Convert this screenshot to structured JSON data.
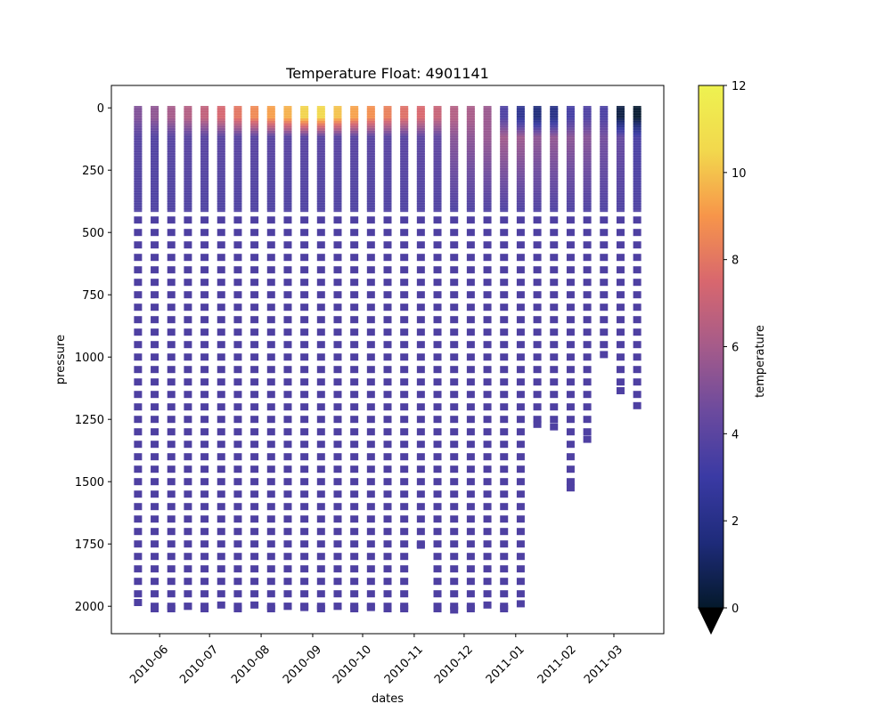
{
  "chart_data": {
    "type": "scatter",
    "title": "Temperature Float: 4901141",
    "xlabel": "dates",
    "ylabel": "pressure",
    "x_ticks": [
      "2010-06",
      "2010-07",
      "2010-08",
      "2010-09",
      "2010-10",
      "2010-11",
      "2010-12",
      "2011-01",
      "2011-02",
      "2011-03"
    ],
    "xlim": [
      "2010-05-03",
      "2011-03-31"
    ],
    "y_ticks": [
      "0",
      "250",
      "500",
      "750",
      "1000",
      "1250",
      "1500",
      "1750",
      "2000"
    ],
    "ylim": [
      2110,
      -90
    ],
    "y_inverted": true,
    "colorbar": {
      "label": "temperature",
      "range": [
        0,
        12
      ],
      "ticks": [
        "0",
        "2",
        "4",
        "6",
        "8",
        "10",
        "12"
      ],
      "colormap": [
        "#04192b",
        "#1e2b7a",
        "#3a3aa4",
        "#6b4a9e",
        "#a55b8a",
        "#d8676e",
        "#f7954a",
        "#f2d84d",
        "#eef250"
      ],
      "extend": "min"
    },
    "upper_depth": 410,
    "profiles": [
      {
        "date": "2010-05-19",
        "max": 1985,
        "surface_temp": 5.0,
        "upper_temp": 3.8,
        "deep_temp": 3.6
      },
      {
        "date": "2010-05-29",
        "max": 2010,
        "surface_temp": 5.4,
        "upper_temp": 3.7,
        "deep_temp": 3.6
      },
      {
        "date": "2010-06-08",
        "max": 2010,
        "surface_temp": 6.0,
        "upper_temp": 3.8,
        "deep_temp": 3.6
      },
      {
        "date": "2010-06-18",
        "max": 2000,
        "surface_temp": 6.4,
        "upper_temp": 3.9,
        "deep_temp": 3.6
      },
      {
        "date": "2010-06-28",
        "max": 2010,
        "surface_temp": 6.8,
        "upper_temp": 3.9,
        "deep_temp": 3.6
      },
      {
        "date": "2010-07-08",
        "max": 1995,
        "surface_temp": 7.4,
        "upper_temp": 3.9,
        "deep_temp": 3.6
      },
      {
        "date": "2010-07-18",
        "max": 2010,
        "surface_temp": 8.0,
        "upper_temp": 3.9,
        "deep_temp": 3.6
      },
      {
        "date": "2010-07-28",
        "max": 1995,
        "surface_temp": 8.6,
        "upper_temp": 3.9,
        "deep_temp": 3.6
      },
      {
        "date": "2010-08-07",
        "max": 2010,
        "surface_temp": 9.2,
        "upper_temp": 3.9,
        "deep_temp": 3.6
      },
      {
        "date": "2010-08-17",
        "max": 2000,
        "surface_temp": 9.6,
        "upper_temp": 3.9,
        "deep_temp": 3.6
      },
      {
        "date": "2010-08-27",
        "max": 2005,
        "surface_temp": 10.4,
        "upper_temp": 3.9,
        "deep_temp": 3.6
      },
      {
        "date": "2010-09-06",
        "max": 2010,
        "surface_temp": 10.5,
        "upper_temp": 3.9,
        "deep_temp": 3.6
      },
      {
        "date": "2010-09-16",
        "max": 2000,
        "surface_temp": 10.0,
        "upper_temp": 3.9,
        "deep_temp": 3.6
      },
      {
        "date": "2010-09-26",
        "max": 2010,
        "surface_temp": 9.3,
        "upper_temp": 3.9,
        "deep_temp": 3.6
      },
      {
        "date": "2010-10-06",
        "max": 2005,
        "surface_temp": 8.8,
        "upper_temp": 3.9,
        "deep_temp": 3.6
      },
      {
        "date": "2010-10-16",
        "max": 2010,
        "surface_temp": 8.3,
        "upper_temp": 3.9,
        "deep_temp": 3.6
      },
      {
        "date": "2010-10-26",
        "max": 2010,
        "surface_temp": 7.8,
        "upper_temp": 3.9,
        "deep_temp": 3.6
      },
      {
        "date": "2010-11-05",
        "max": 1755,
        "surface_temp": 7.5,
        "upper_temp": 4.0,
        "deep_temp": 3.6
      },
      {
        "date": "2010-11-15",
        "max": 2010,
        "surface_temp": 7.0,
        "upper_temp": 4.1,
        "deep_temp": 3.6
      },
      {
        "date": "2010-11-25",
        "max": 2015,
        "surface_temp": 6.4,
        "upper_temp": 5.2,
        "deep_temp": 3.6
      },
      {
        "date": "2010-12-05",
        "max": 2010,
        "surface_temp": 6.1,
        "upper_temp": 5.3,
        "deep_temp": 3.6
      },
      {
        "date": "2010-12-15",
        "max": 1995,
        "surface_temp": 5.7,
        "upper_temp": 5.6,
        "deep_temp": 3.6
      },
      {
        "date": "2010-12-25",
        "max": 2010,
        "surface_temp": 3.6,
        "upper_temp": 5.9,
        "deep_temp": 3.6
      },
      {
        "date": "2011-01-04",
        "max": 1990,
        "surface_temp": 2.3,
        "upper_temp": 5.8,
        "deep_temp": 3.6
      },
      {
        "date": "2011-01-14",
        "max": 1270,
        "surface_temp": 1.5,
        "upper_temp": 5.4,
        "deep_temp": 3.6
      },
      {
        "date": "2011-01-24",
        "max": 1280,
        "surface_temp": 1.9,
        "upper_temp": 5.5,
        "deep_temp": 3.6
      },
      {
        "date": "2011-02-03",
        "max": 1525,
        "surface_temp": 3.3,
        "upper_temp": 5.3,
        "deep_temp": 3.6
      },
      {
        "date": "2011-02-13",
        "max": 1330,
        "surface_temp": 3.6,
        "upper_temp": 5.2,
        "deep_temp": 3.6
      },
      {
        "date": "2011-02-23",
        "max": 990,
        "surface_temp": 3.5,
        "upper_temp": 4.7,
        "deep_temp": 3.6
      },
      {
        "date": "2011-03-05",
        "max": 1135,
        "surface_temp": 0.5,
        "upper_temp": 4.3,
        "deep_temp": 3.6
      },
      {
        "date": "2011-03-15",
        "max": 1195,
        "surface_temp": 0.1,
        "upper_temp": 3.4,
        "deep_temp": 3.6
      }
    ]
  }
}
